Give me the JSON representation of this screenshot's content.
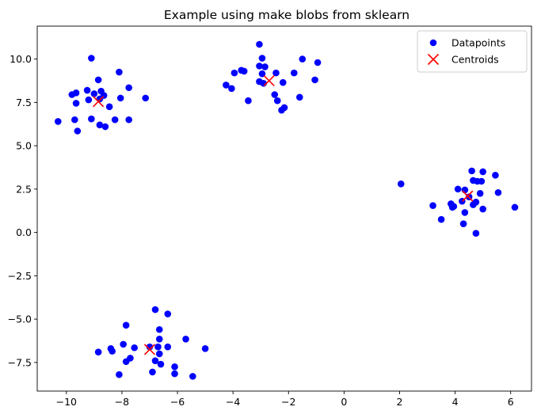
{
  "chart_data": {
    "type": "scatter",
    "title": "Example using make blobs from sklearn",
    "xlabel": "",
    "ylabel": "",
    "xlim": [
      -11.05,
      6.75
    ],
    "ylim": [
      -9.15,
      11.9
    ],
    "x_ticks": [
      -10,
      -8,
      -6,
      -4,
      -2,
      0,
      2,
      4,
      6
    ],
    "x_tick_labels": [
      "−10",
      "−8",
      "−6",
      "−4",
      "−2",
      "0",
      "2",
      "4",
      "6"
    ],
    "y_ticks": [
      -7.5,
      -5.0,
      -2.5,
      0.0,
      2.5,
      5.0,
      7.5,
      10.0
    ],
    "y_tick_labels": [
      "−7.5",
      "−5.0",
      "−2.5",
      "0.0",
      "2.5",
      "5.0",
      "7.5",
      "10.0"
    ],
    "grid": false,
    "legend_position": "top-right",
    "series": [
      {
        "name": "Datapoints",
        "marker": "circle",
        "color": "#0000ff",
        "points": [
          [
            -9.1,
            10.05
          ],
          [
            -8.1,
            9.25
          ],
          [
            -9.65,
            8.05
          ],
          [
            -9.8,
            7.95
          ],
          [
            -9.25,
            8.2
          ],
          [
            -8.75,
            8.15
          ],
          [
            -9.0,
            8.0
          ],
          [
            -8.65,
            7.9
          ],
          [
            -9.65,
            7.45
          ],
          [
            -9.2,
            7.65
          ],
          [
            -8.8,
            7.7
          ],
          [
            -7.75,
            8.35
          ],
          [
            -8.05,
            7.75
          ],
          [
            -7.15,
            7.75
          ],
          [
            -8.45,
            7.25
          ],
          [
            -10.3,
            6.4
          ],
          [
            -9.7,
            6.5
          ],
          [
            -9.6,
            5.85
          ],
          [
            -9.1,
            6.55
          ],
          [
            -8.8,
            6.2
          ],
          [
            -8.6,
            6.1
          ],
          [
            -8.25,
            6.5
          ],
          [
            -7.75,
            6.5
          ],
          [
            -8.85,
            8.8
          ],
          [
            -3.05,
            10.85
          ],
          [
            -2.95,
            10.05
          ],
          [
            -3.05,
            9.6
          ],
          [
            -2.85,
            9.55
          ],
          [
            -1.5,
            10.0
          ],
          [
            -0.95,
            9.8
          ],
          [
            -3.95,
            9.2
          ],
          [
            -3.7,
            9.35
          ],
          [
            -3.6,
            9.3
          ],
          [
            -2.95,
            9.15
          ],
          [
            -2.45,
            9.2
          ],
          [
            -1.8,
            9.2
          ],
          [
            -4.25,
            8.5
          ],
          [
            -4.05,
            8.3
          ],
          [
            -3.05,
            8.7
          ],
          [
            -2.9,
            8.6
          ],
          [
            -2.2,
            8.65
          ],
          [
            -1.05,
            8.8
          ],
          [
            -2.5,
            7.95
          ],
          [
            -2.4,
            7.6
          ],
          [
            -1.6,
            7.8
          ],
          [
            -3.45,
            7.6
          ],
          [
            -2.15,
            7.2
          ],
          [
            -2.25,
            7.05
          ],
          [
            2.05,
            2.8
          ],
          [
            4.6,
            3.55
          ],
          [
            5.0,
            3.5
          ],
          [
            5.45,
            3.3
          ],
          [
            4.65,
            3.0
          ],
          [
            4.8,
            2.95
          ],
          [
            4.95,
            2.95
          ],
          [
            4.1,
            2.5
          ],
          [
            4.35,
            2.45
          ],
          [
            5.55,
            2.3
          ],
          [
            4.9,
            2.25
          ],
          [
            4.5,
            2.05
          ],
          [
            4.25,
            1.8
          ],
          [
            4.75,
            1.75
          ],
          [
            3.85,
            1.65
          ],
          [
            3.2,
            1.55
          ],
          [
            3.95,
            1.5
          ],
          [
            3.9,
            1.45
          ],
          [
            6.15,
            1.45
          ],
          [
            5.0,
            1.35
          ],
          [
            4.35,
            1.15
          ],
          [
            3.5,
            0.75
          ],
          [
            4.3,
            0.5
          ],
          [
            4.75,
            -0.05
          ],
          [
            4.65,
            1.6
          ],
          [
            -6.8,
            -4.45
          ],
          [
            -6.35,
            -4.7
          ],
          [
            -7.85,
            -5.35
          ],
          [
            -6.65,
            -5.6
          ],
          [
            -5.7,
            -6.15
          ],
          [
            -6.65,
            -6.15
          ],
          [
            -7.95,
            -6.45
          ],
          [
            -8.4,
            -6.7
          ],
          [
            -7.0,
            -6.6
          ],
          [
            -7.55,
            -6.65
          ],
          [
            -6.35,
            -6.6
          ],
          [
            -6.7,
            -6.6
          ],
          [
            -5.0,
            -6.7
          ],
          [
            -8.85,
            -6.9
          ],
          [
            -8.35,
            -6.85
          ],
          [
            -6.65,
            -7.0
          ],
          [
            -7.7,
            -7.25
          ],
          [
            -7.85,
            -7.45
          ],
          [
            -6.8,
            -7.4
          ],
          [
            -6.6,
            -7.6
          ],
          [
            -6.1,
            -7.75
          ],
          [
            -6.9,
            -8.05
          ],
          [
            -6.1,
            -8.15
          ],
          [
            -8.1,
            -8.2
          ],
          [
            -5.45,
            -8.3
          ]
        ]
      },
      {
        "name": "Centroids",
        "marker": "x",
        "color": "#ff0000",
        "points": [
          [
            -8.85,
            7.55
          ],
          [
            -2.7,
            8.75
          ],
          [
            4.45,
            2.1
          ],
          [
            -7.0,
            -6.75
          ]
        ]
      }
    ]
  }
}
